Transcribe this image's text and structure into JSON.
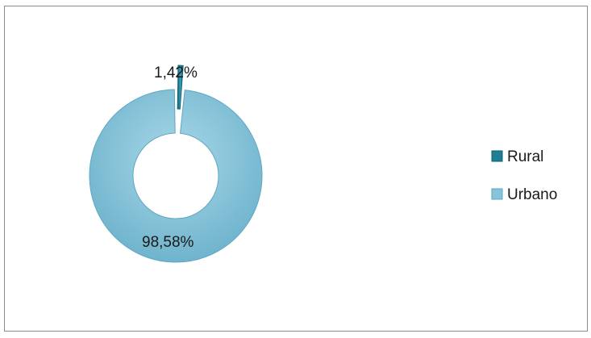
{
  "chart_data": {
    "type": "pie",
    "variant": "doughnut",
    "categories": [
      "Rural",
      "Urbano"
    ],
    "values": [
      1.42,
      98.58
    ],
    "data_labels": [
      "1,42%",
      "98,58%"
    ],
    "colors": [
      "#1f7e94",
      "#86c4da"
    ],
    "legend": {
      "position": "right",
      "entries": [
        "Rural",
        "Urbano"
      ]
    },
    "title": "",
    "exploded_slice": "Rural"
  }
}
